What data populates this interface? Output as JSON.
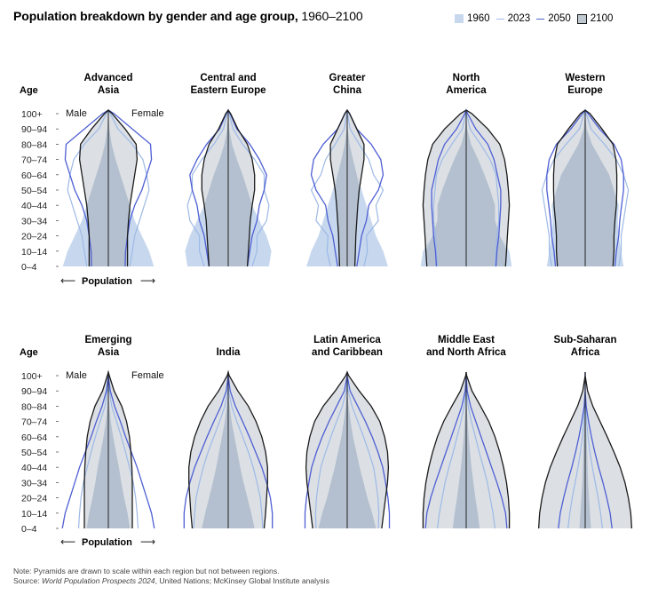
{
  "title": {
    "bold": "Population breakdown by gender and age group,",
    "range": " 1960–2100"
  },
  "legend": [
    {
      "label": "1960",
      "kind": "fill",
      "color": "#c7d8ee"
    },
    {
      "label": "2023",
      "kind": "line",
      "color": "#9db9e6"
    },
    {
      "label": "2050",
      "kind": "line",
      "color": "#4e5fd3"
    },
    {
      "label": "2100",
      "kind": "box",
      "color": "#bfc7d0"
    }
  ],
  "labels": {
    "age": "Age",
    "male": "Male",
    "female": "Female",
    "population": "Population",
    "arrow_left": "⟵",
    "arrow_right": "⟶"
  },
  "note": {
    "line1": "Note: Pyramids are drawn to scale within each region but not between regions.",
    "source_prefix": "Source: ",
    "source_italic": "World Population Prospects 2024",
    "source_rest": ", United Nations; McKinsey Global Institute analysis"
  },
  "colors": {
    "y1960": "#c7d8ee",
    "y2023": "#9db9e6",
    "y2050": "#4e5fd3",
    "y2100_fill": "#bfc7d0",
    "y2100_line": "#1a1a1a",
    "axis": "#222222"
  },
  "chart_data": {
    "type": "area",
    "title": "Population breakdown by gender and age group, 1960–2100",
    "xlabel": "Population",
    "ylabel": "Age",
    "age_groups": [
      "0–4",
      "10–14",
      "20–24",
      "30–34",
      "40–44",
      "50–54",
      "60–64",
      "70–74",
      "80–84",
      "90–94",
      "100+"
    ],
    "series_names": [
      "1960",
      "2023",
      "2050",
      "2100"
    ],
    "regions": [
      {
        "name": "Advanced Asia",
        "label_lines": [
          "Advanced",
          "Asia"
        ],
        "show_sex": true,
        "profiles": {
          "1960": [
            0.95,
            0.85,
            0.7,
            0.55,
            0.45,
            0.35,
            0.25,
            0.15,
            0.07,
            0.02,
            0.0
          ],
          "2023": [
            0.45,
            0.5,
            0.55,
            0.65,
            0.75,
            0.85,
            0.8,
            0.72,
            0.5,
            0.2,
            0.04
          ],
          "2050": [
            0.35,
            0.36,
            0.4,
            0.45,
            0.55,
            0.7,
            0.8,
            0.9,
            0.88,
            0.5,
            0.12
          ],
          "2100": [
            0.4,
            0.4,
            0.4,
            0.42,
            0.45,
            0.5,
            0.55,
            0.6,
            0.58,
            0.35,
            0.08
          ]
        }
      },
      {
        "name": "Central and Eastern Europe",
        "label_lines": [
          "Central and",
          "Eastern Europe"
        ],
        "show_sex": false,
        "profiles": {
          "1960": [
            0.85,
            0.9,
            0.8,
            0.65,
            0.5,
            0.4,
            0.3,
            0.18,
            0.08,
            0.02,
            0.0
          ],
          "2023": [
            0.5,
            0.6,
            0.6,
            0.8,
            0.85,
            0.75,
            0.75,
            0.55,
            0.3,
            0.1,
            0.02
          ],
          "2050": [
            0.4,
            0.45,
            0.5,
            0.6,
            0.65,
            0.75,
            0.8,
            0.65,
            0.45,
            0.18,
            0.04
          ],
          "2100": [
            0.4,
            0.42,
            0.44,
            0.46,
            0.5,
            0.55,
            0.55,
            0.5,
            0.4,
            0.2,
            0.05
          ]
        }
      },
      {
        "name": "Greater China",
        "label_lines": [
          "Greater",
          "China"
        ],
        "show_sex": false,
        "profiles": {
          "1960": [
            0.85,
            0.75,
            0.6,
            0.5,
            0.4,
            0.3,
            0.2,
            0.12,
            0.05,
            0.01,
            0.0
          ],
          "2023": [
            0.35,
            0.42,
            0.4,
            0.65,
            0.6,
            0.75,
            0.55,
            0.45,
            0.25,
            0.06,
            0.01
          ],
          "2050": [
            0.2,
            0.25,
            0.3,
            0.4,
            0.45,
            0.65,
            0.75,
            0.7,
            0.5,
            0.2,
            0.05
          ],
          "2100": [
            0.16,
            0.17,
            0.18,
            0.2,
            0.22,
            0.25,
            0.3,
            0.35,
            0.35,
            0.2,
            0.05
          ]
        }
      },
      {
        "name": "North America",
        "label_lines": [
          "North",
          "America"
        ],
        "show_sex": false,
        "profiles": {
          "1960": [
            0.95,
            0.9,
            0.7,
            0.6,
            0.6,
            0.5,
            0.38,
            0.25,
            0.1,
            0.02,
            0.0
          ],
          "2023": [
            0.6,
            0.62,
            0.64,
            0.68,
            0.68,
            0.65,
            0.62,
            0.5,
            0.3,
            0.08,
            0.01
          ],
          "2050": [
            0.62,
            0.64,
            0.68,
            0.7,
            0.72,
            0.72,
            0.65,
            0.58,
            0.45,
            0.2,
            0.03
          ],
          "2100": [
            0.82,
            0.84,
            0.86,
            0.88,
            0.9,
            0.88,
            0.85,
            0.8,
            0.7,
            0.45,
            0.12
          ]
        }
      },
      {
        "name": "Western Europe",
        "label_lines": [
          "Western",
          "Europe"
        ],
        "show_sex": false,
        "profiles": {
          "1960": [
            0.8,
            0.75,
            0.7,
            0.68,
            0.7,
            0.6,
            0.5,
            0.32,
            0.14,
            0.03,
            0.0
          ],
          "2023": [
            0.7,
            0.75,
            0.75,
            0.8,
            0.85,
            0.9,
            0.8,
            0.65,
            0.4,
            0.12,
            0.02
          ],
          "2050": [
            0.62,
            0.65,
            0.7,
            0.72,
            0.76,
            0.8,
            0.8,
            0.75,
            0.6,
            0.3,
            0.06
          ],
          "2100": [
            0.58,
            0.6,
            0.6,
            0.62,
            0.65,
            0.66,
            0.66,
            0.64,
            0.58,
            0.35,
            0.1
          ]
        }
      },
      {
        "name": "Emerging Asia",
        "label_lines": [
          "Emerging",
          "Asia"
        ],
        "show_sex": true,
        "profiles": {
          "1960": [
            0.45,
            0.4,
            0.33,
            0.27,
            0.22,
            0.16,
            0.1,
            0.05,
            0.02,
            0.0,
            0.0
          ],
          "2023": [
            0.62,
            0.6,
            0.57,
            0.52,
            0.44,
            0.36,
            0.27,
            0.17,
            0.07,
            0.02,
            0.0
          ],
          "2050": [
            0.96,
            0.9,
            0.8,
            0.7,
            0.6,
            0.48,
            0.36,
            0.25,
            0.13,
            0.04,
            0.0
          ],
          "2100": [
            0.5,
            0.5,
            0.5,
            0.5,
            0.49,
            0.47,
            0.44,
            0.38,
            0.28,
            0.12,
            0.02
          ]
        }
      },
      {
        "name": "India",
        "label_lines": [
          "India"
        ],
        "show_sex": false,
        "profiles": {
          "1960": [
            0.55,
            0.48,
            0.4,
            0.32,
            0.25,
            0.19,
            0.13,
            0.07,
            0.03,
            0.0,
            0.0
          ],
          "2023": [
            0.72,
            0.7,
            0.67,
            0.6,
            0.52,
            0.42,
            0.3,
            0.18,
            0.07,
            0.01,
            0.0
          ],
          "2050": [
            0.92,
            0.92,
            0.88,
            0.8,
            0.7,
            0.57,
            0.44,
            0.3,
            0.15,
            0.04,
            0.0
          ],
          "2100": [
            0.75,
            0.78,
            0.8,
            0.82,
            0.82,
            0.78,
            0.7,
            0.58,
            0.42,
            0.2,
            0.02
          ]
        }
      },
      {
        "name": "Latin America and Caribbean",
        "label_lines": [
          "Latin America",
          "and Caribbean"
        ],
        "show_sex": false,
        "profiles": {
          "1960": [
            0.6,
            0.52,
            0.42,
            0.34,
            0.26,
            0.19,
            0.12,
            0.07,
            0.03,
            0.0,
            0.0
          ],
          "2023": [
            0.65,
            0.66,
            0.64,
            0.6,
            0.55,
            0.45,
            0.34,
            0.22,
            0.1,
            0.02,
            0.0
          ],
          "2050": [
            0.88,
            0.88,
            0.85,
            0.8,
            0.74,
            0.64,
            0.52,
            0.38,
            0.22,
            0.06,
            0.0
          ],
          "2100": [
            0.72,
            0.76,
            0.8,
            0.84,
            0.86,
            0.84,
            0.78,
            0.68,
            0.5,
            0.25,
            0.03
          ]
        }
      },
      {
        "name": "Middle East and North Africa",
        "label_lines": [
          "Middle East",
          "and North Africa"
        ],
        "show_sex": false,
        "profiles": {
          "1960": [
            0.28,
            0.24,
            0.19,
            0.15,
            0.11,
            0.08,
            0.05,
            0.03,
            0.01,
            0.0,
            0.0
          ],
          "2023": [
            0.6,
            0.56,
            0.5,
            0.44,
            0.36,
            0.27,
            0.19,
            0.11,
            0.04,
            0.01,
            0.0
          ],
          "2050": [
            0.85,
            0.82,
            0.74,
            0.64,
            0.53,
            0.42,
            0.31,
            0.2,
            0.09,
            0.02,
            0.0
          ],
          "2100": [
            0.9,
            0.9,
            0.88,
            0.84,
            0.78,
            0.7,
            0.6,
            0.47,
            0.3,
            0.12,
            0.01
          ]
        }
      },
      {
        "name": "Sub-Saharan Africa",
        "label_lines": [
          "Sub-Saharan",
          "Africa"
        ],
        "show_sex": false,
        "profiles": {
          "1960": [
            0.12,
            0.1,
            0.08,
            0.06,
            0.05,
            0.04,
            0.03,
            0.015,
            0.005,
            0.0,
            0.0
          ],
          "2023": [
            0.36,
            0.32,
            0.27,
            0.21,
            0.15,
            0.1,
            0.06,
            0.03,
            0.01,
            0.0,
            0.0
          ],
          "2050": [
            0.56,
            0.52,
            0.45,
            0.37,
            0.28,
            0.2,
            0.13,
            0.07,
            0.02,
            0.0,
            0.0
          ],
          "2100": [
            0.97,
            0.95,
            0.9,
            0.83,
            0.73,
            0.6,
            0.46,
            0.31,
            0.16,
            0.05,
            0.0
          ]
        }
      }
    ]
  }
}
